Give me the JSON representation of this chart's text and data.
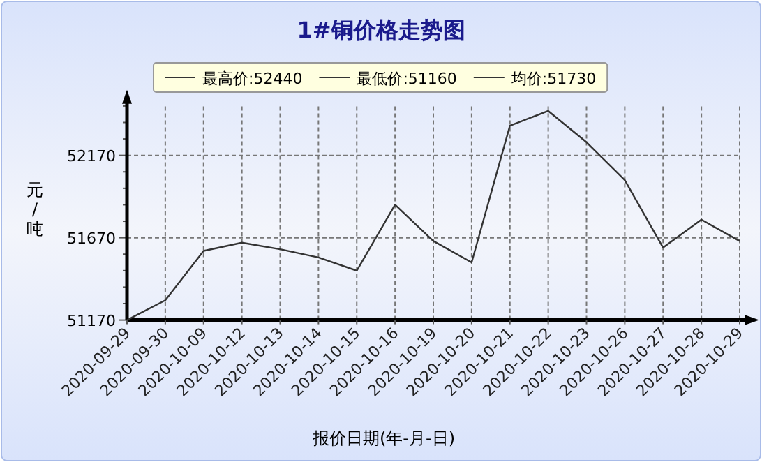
{
  "chart_data": {
    "type": "line",
    "title": "1#铜价格走势图",
    "xlabel": "报价日期(年-月-日)",
    "ylabel": "元/吨",
    "annotations": [
      "最高价:52440",
      "最低价:51160",
      "均价:51730"
    ],
    "categories": [
      "2020-09-29",
      "2020-09-30",
      "2020-10-09",
      "2020-10-12",
      "2020-10-13",
      "2020-10-14",
      "2020-10-15",
      "2020-10-16",
      "2020-10-19",
      "2020-10-20",
      "2020-10-21",
      "2020-10-22",
      "2020-10-23",
      "2020-10-26",
      "2020-10-27",
      "2020-10-28",
      "2020-10-29"
    ],
    "series": [
      {
        "color": "#333333",
        "values": [
          51170,
          51290,
          51590,
          51640,
          51600,
          51550,
          51470,
          51870,
          51650,
          51520,
          52350,
          52440,
          52250,
          52020,
          51610,
          51780,
          51650
        ]
      }
    ],
    "ylim": [
      51170,
      52500
    ],
    "yticks": [
      51170,
      {
        "value": 51270,
        "label": null
      },
      {
        "value": 51370,
        "label": null
      },
      {
        "value": 51470,
        "label": null
      },
      {
        "value": 51570,
        "label": null
      },
      51670,
      {
        "value": 51770,
        "label": null
      },
      {
        "value": 51870,
        "label": null
      },
      {
        "value": 51970,
        "label": null
      },
      {
        "value": 52070,
        "label": null
      },
      52170,
      {
        "value": 52270,
        "label": null
      },
      {
        "value": 52370,
        "label": null
      },
      {
        "value": 52470,
        "label": null
      }
    ],
    "grid": true,
    "marker": "none",
    "line_style": "solid"
  }
}
